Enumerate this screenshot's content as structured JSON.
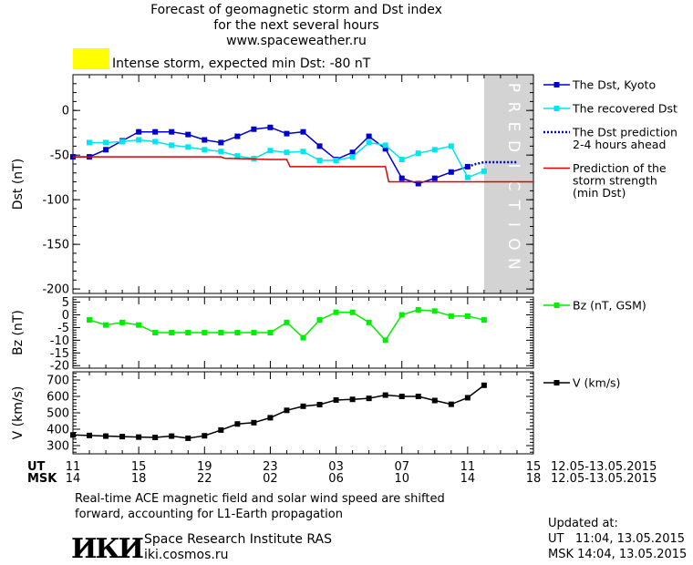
{
  "header": {
    "title_line1": "Forecast of geomagnetic storm and Dst index",
    "title_line2": "for the next several hours",
    "title_line3": "www.spaceweather.ru",
    "storm_color": "#ffff00",
    "storm_label": "Intense storm, expected min Dst: -80 nT"
  },
  "chart_data": [
    {
      "type": "line",
      "ylabel": "Dst (nT)",
      "ylim": [
        -205,
        40
      ],
      "yticks": [
        0,
        -50,
        -100,
        -150,
        -200
      ],
      "ytick_labels": [
        "0",
        "-50",
        "-100",
        "-150",
        "-200"
      ],
      "prediction_text": "PREDICTION",
      "series": [
        {
          "name": "The Dst, Kyoto",
          "color": "#0000cc",
          "marker": "square",
          "x": [
            11,
            12,
            13,
            14,
            15,
            16,
            17,
            18,
            19,
            20,
            21,
            22,
            23,
            24,
            25,
            26,
            27,
            28,
            29,
            30,
            31,
            32,
            33,
            34,
            35
          ],
          "values": [
            -52,
            -52,
            -44,
            -34,
            -24,
            -24,
            -24,
            -27,
            -33,
            -36,
            -29,
            -21,
            -19,
            -26,
            -24,
            -40,
            -55,
            -47,
            -29,
            -43,
            -76,
            -82,
            -76,
            -69,
            -63
          ]
        },
        {
          "name": "The recovered Dst",
          "color": "#00e5ee",
          "marker": "square",
          "x": [
            12,
            13,
            14,
            15,
            16,
            17,
            18,
            19,
            20,
            21,
            22,
            23,
            24,
            25,
            26,
            27,
            28,
            29,
            30,
            31,
            32,
            33,
            34,
            35,
            36
          ],
          "values": [
            -36,
            -36,
            -35,
            -33,
            -35,
            -39,
            -41,
            -44,
            -46,
            -51,
            -54,
            -45,
            -47,
            -46,
            -56,
            -56,
            -52,
            -36,
            -39,
            -55,
            -48,
            -44,
            -40,
            -75,
            -68
          ]
        },
        {
          "name": "The Dst prediction 2-4 hours ahead",
          "color": "#0000cc",
          "style": "dotted",
          "x": [
            35,
            35.5,
            36,
            36.5,
            37,
            37.5,
            38
          ],
          "values": [
            -63,
            -60,
            -58,
            -58,
            -58,
            -58,
            -58
          ]
        },
        {
          "name": "Prediction of the storm strength (min Dst)",
          "color": "#dd0000",
          "x": [
            11,
            20,
            20.2,
            23,
            24,
            24.2,
            28,
            28.2,
            30,
            30.2,
            39
          ],
          "values": [
            -52,
            -52,
            -53.5,
            -55,
            -55,
            -63,
            -63,
            -63,
            -63,
            -80,
            -80
          ]
        }
      ],
      "legend": [
        {
          "label": "The Dst, Kyoto",
          "color": "#0000cc",
          "style": "solid-marker"
        },
        {
          "label": "The recovered Dst",
          "color": "#00e5ee",
          "style": "solid-marker"
        },
        {
          "label": "The Dst prediction",
          "label2": "2-4 hours ahead",
          "color": "#0000cc",
          "style": "dotted"
        },
        {
          "label": "Prediction of the",
          "label2": "storm strength",
          "label3": "(min Dst)",
          "color": "#dd0000",
          "style": "line"
        }
      ]
    },
    {
      "type": "line",
      "ylabel": "Bz (nT)",
      "ylim": [
        -21,
        7
      ],
      "yticks": [
        5,
        0,
        -5,
        -10,
        -15,
        -20
      ],
      "ytick_labels": [
        "5",
        "0",
        "-5",
        "-10",
        "-15",
        "-20"
      ],
      "series": [
        {
          "name": "Bz (nT, GSM)",
          "color": "#00ee00",
          "marker": "square",
          "x": [
            12,
            13,
            14,
            15,
            16,
            17,
            18,
            19,
            20,
            21,
            22,
            23,
            24,
            25,
            26,
            27,
            28,
            29,
            30,
            31,
            32,
            33,
            34,
            35,
            36
          ],
          "values": [
            -2,
            -4,
            -3,
            -4,
            -7,
            -7,
            -7,
            -7,
            -7,
            -7,
            -7,
            -7,
            -3,
            -9,
            -2,
            1,
            1,
            -3,
            -10,
            0,
            2,
            1.5,
            -0.5,
            -0.5,
            -2
          ]
        }
      ],
      "legend": [
        {
          "label": "Bz (nT, GSM)",
          "color": "#00ee00"
        }
      ]
    },
    {
      "type": "line",
      "ylabel": "V (km/s)",
      "ylim": [
        250,
        750
      ],
      "yticks": [
        700,
        600,
        500,
        400,
        300
      ],
      "ytick_labels": [
        "700",
        "600",
        "500",
        "400",
        "300"
      ],
      "series": [
        {
          "name": "V (km/s)",
          "color": "#000000",
          "marker": "square",
          "x": [
            11,
            12,
            13,
            14,
            15,
            16,
            17,
            18,
            19,
            20,
            21,
            22,
            23,
            24,
            25,
            26,
            27,
            28,
            29,
            30,
            31,
            32,
            33,
            34,
            35,
            36
          ],
          "values": [
            365,
            362,
            358,
            355,
            352,
            350,
            358,
            345,
            360,
            395,
            432,
            440,
            470,
            515,
            540,
            550,
            578,
            582,
            588,
            608,
            600,
            600,
            575,
            552,
            592,
            668
          ]
        }
      ],
      "legend": [
        {
          "label": "V (km/s)",
          "color": "#000000"
        }
      ]
    }
  ],
  "time_axis": {
    "x_range": [
      11,
      39
    ],
    "ut_label": "UT",
    "msk_label": "MSK",
    "ut_ticks": [
      "11",
      "15",
      "19",
      "23",
      "03",
      "07",
      "11",
      "15"
    ],
    "msk_ticks": [
      "14",
      "18",
      "22",
      "02",
      "06",
      "10",
      "14",
      "18"
    ],
    "date_range_ut": "12.05-13.05.2015",
    "date_range_msk": "12.05-13.05.2015"
  },
  "footer": {
    "note_line1": "Real-time ACE magnetic field and solar wind speed are shifted",
    "note_line2": "forward, accounting for L1-Earth propagation",
    "logo_text": "ИКИ",
    "institute": "Space Research Institute RAS",
    "site": "iki.cosmos.ru",
    "updated_label": "Updated at:",
    "updated_ut": "UT   11:04, 13.05.2015",
    "updated_msk": "MSK 14:04, 13.05.2015"
  }
}
